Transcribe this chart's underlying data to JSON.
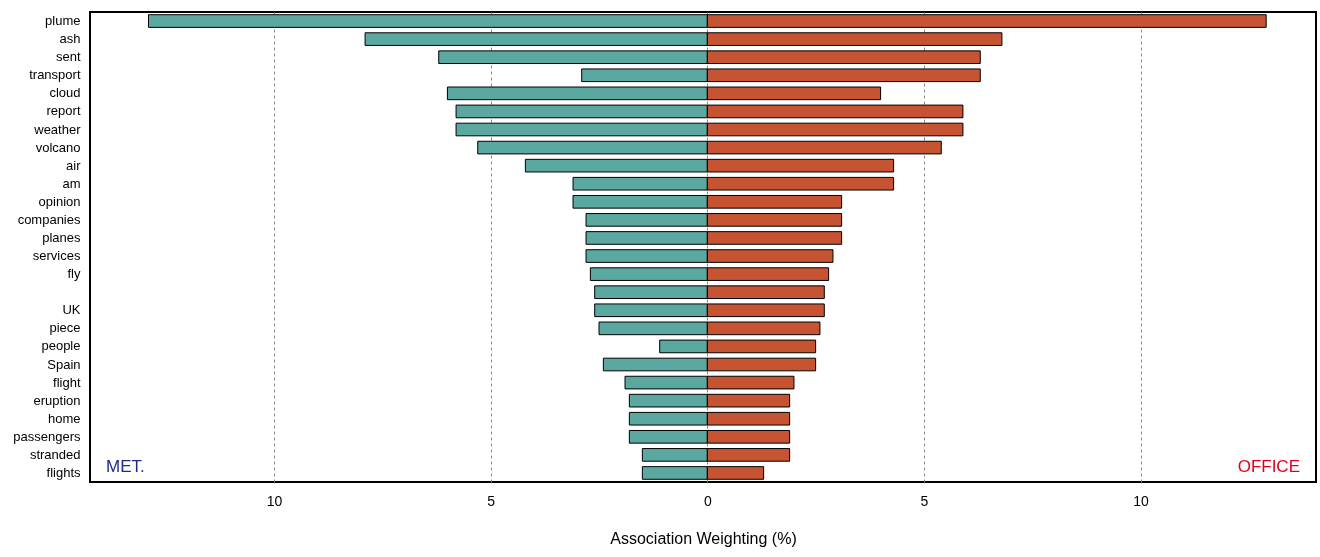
{
  "chart_data": {
    "type": "bar",
    "orientation": "horizontal",
    "xlabel": "Association Weighting (%)",
    "categories": [
      "plume",
      "ash",
      "sent",
      "transport",
      "cloud",
      "report",
      "weather",
      "volcano",
      "air",
      "am",
      "opinion",
      "companies",
      "planes",
      "services",
      "fly",
      null,
      "UK",
      "piece",
      "people",
      "Spain",
      "flight",
      "eruption",
      "home",
      "passengers",
      "stranded",
      "flights"
    ],
    "series": [
      {
        "color": "#5ba8a0",
        "values": [
          -12.9,
          -7.9,
          -6.2,
          -2.9,
          -6.0,
          -5.8,
          -5.8,
          -5.3,
          -4.2,
          -3.1,
          -3.1,
          -2.8,
          -2.8,
          -2.8,
          -2.7,
          -2.6,
          -2.6,
          -2.5,
          -1.1,
          -2.4,
          -1.9,
          -1.8,
          -1.8,
          -1.8,
          -1.5,
          -1.5
        ]
      },
      {
        "color": "#c65432",
        "values": [
          12.9,
          6.8,
          6.3,
          6.3,
          4.0,
          5.9,
          5.9,
          5.4,
          4.3,
          4.3,
          3.1,
          3.1,
          3.1,
          2.9,
          2.8,
          2.7,
          2.7,
          2.6,
          2.5,
          2.5,
          2.0,
          1.9,
          1.9,
          1.9,
          1.9,
          1.3
        ]
      }
    ],
    "xlim": [
      -14.25,
      14.05
    ],
    "xticks": [
      {
        "value": -10,
        "label": "10"
      },
      {
        "value": -5,
        "label": "5"
      },
      0,
      5,
      10
    ],
    "grid": "x",
    "stacked": true,
    "annotations": [
      "MET.",
      "OFFICE"
    ]
  }
}
